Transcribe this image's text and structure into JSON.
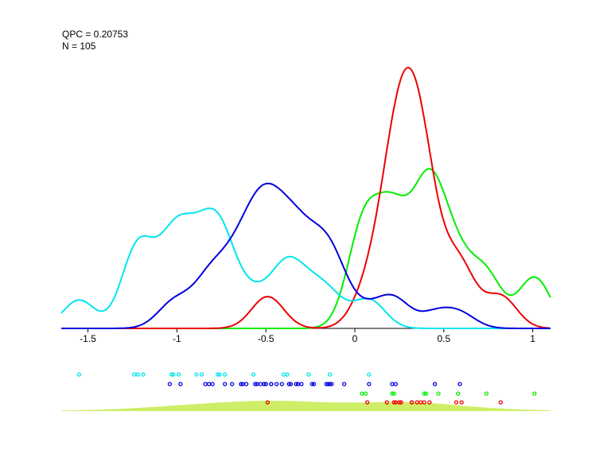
{
  "stats": {
    "qpc": "QPC = 0.20753",
    "n": "N = 105"
  },
  "chart_data": {
    "type": "line",
    "xlim": [
      -1.65,
      1.1
    ],
    "x_ticks": [
      -1.5,
      -1,
      -0.5,
      0,
      0.5,
      1
    ],
    "x_tick_labels": [
      "-1.5",
      "-1",
      "-0.5",
      "0",
      "0.5",
      "1"
    ],
    "grid": false,
    "series": [
      {
        "color": "#00e5ee",
        "points": [
          -1.55,
          -1.24,
          -1.22,
          -1.19,
          -1.03,
          -1.02,
          -0.99,
          -0.89,
          -0.86,
          -0.77,
          -0.76,
          -0.73,
          -0.57,
          -0.4,
          -0.38,
          -0.26,
          -0.14,
          0.08
        ]
      },
      {
        "color": "#0000dd",
        "points": [
          -1.04,
          -0.98,
          -0.84,
          -0.82,
          -0.8,
          -0.73,
          -0.69,
          -0.64,
          -0.63,
          -0.61,
          -0.56,
          -0.55,
          -0.53,
          -0.51,
          -0.5,
          -0.47,
          -0.47,
          -0.44,
          -0.41,
          -0.37,
          -0.36,
          -0.33,
          -0.32,
          -0.3,
          -0.24,
          -0.23,
          -0.16,
          -0.15,
          -0.14,
          -0.13,
          -0.06,
          0.08,
          0.21,
          0.23,
          0.45,
          0.59
        ]
      },
      {
        "color": "#00ee00",
        "points": [
          0.04,
          0.06,
          0.21,
          0.22,
          0.39,
          0.4,
          0.47,
          0.58,
          0.74,
          1.01
        ]
      },
      {
        "color": "#ee0000",
        "points": [
          -0.49,
          0.07,
          0.18,
          0.22,
          0.23,
          0.25,
          0.26,
          0.32,
          0.32,
          0.35,
          0.37,
          0.39,
          0.42,
          0.57,
          0.6,
          0.82
        ]
      }
    ],
    "overall_density_color": "#cdee66"
  }
}
